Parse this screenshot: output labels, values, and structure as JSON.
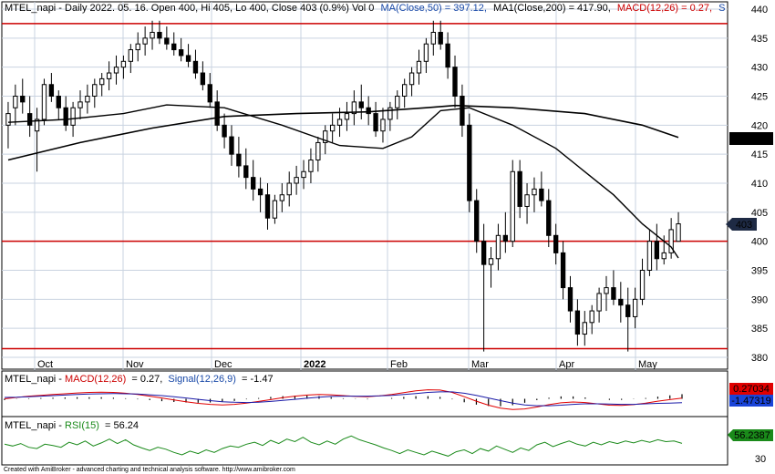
{
  "chart_data": [
    {
      "type": "candlestick",
      "symbol": "MTEL_napi",
      "header": {
        "prefix": "MTEL_napi - Daily 2022. 05. 16. Open 400, Hi 405, Lo 400, Close 403 (0.9%) Vol 0",
        "ma50": "MA(Close,50) = 397.12,",
        "ma200": "MA1(Close,200) = 417.90,",
        "macd": "MACD(12,26) = 0.27,",
        "tail": "S"
      },
      "ylim": [
        380,
        440
      ],
      "yticks": [
        440,
        435,
        430,
        425,
        420,
        415,
        410,
        405,
        400,
        395,
        390,
        385,
        380
      ],
      "xticks": [
        "Oct",
        "Nov",
        "Dec",
        "2022",
        "Feb",
        "Mar",
        "Apr",
        "May"
      ],
      "horizontal_lines": [
        437.5,
        400,
        381.5
      ],
      "last_value_labels": {
        "ma200": "417.905",
        "close": "403"
      },
      "candles": [
        [
          420,
          424,
          416,
          422
        ],
        [
          423,
          427,
          420,
          425
        ],
        [
          425,
          428,
          422,
          424
        ],
        [
          422,
          425,
          418,
          420
        ],
        [
          419,
          423,
          412,
          421
        ],
        [
          421,
          428,
          420,
          427
        ],
        [
          427,
          429,
          424,
          425
        ],
        [
          425,
          426,
          421,
          423
        ],
        [
          423,
          425,
          419,
          420
        ],
        [
          420,
          424,
          418,
          423
        ],
        [
          423,
          426,
          421,
          424
        ],
        [
          424,
          427,
          422,
          425
        ],
        [
          425,
          428,
          423,
          427
        ],
        [
          427,
          429,
          425,
          428
        ],
        [
          428,
          431,
          426,
          429
        ],
        [
          429,
          432,
          427,
          430
        ],
        [
          430,
          432,
          428,
          431
        ],
        [
          431,
          434,
          429,
          433
        ],
        [
          433,
          436,
          431,
          434
        ],
        [
          434,
          437,
          432,
          435
        ],
        [
          435,
          438,
          433,
          436
        ],
        [
          436,
          438,
          434,
          435
        ],
        [
          435,
          437,
          433,
          434
        ],
        [
          434,
          436,
          432,
          433
        ],
        [
          433,
          435,
          431,
          432
        ],
        [
          432,
          434,
          430,
          431
        ],
        [
          431,
          433,
          428,
          429
        ],
        [
          429,
          431,
          426,
          427
        ],
        [
          427,
          429,
          423,
          424
        ],
        [
          424,
          426,
          419,
          420
        ],
        [
          420,
          422,
          416,
          418
        ],
        [
          418,
          420,
          413,
          415
        ],
        [
          415,
          418,
          411,
          413
        ],
        [
          413,
          416,
          409,
          411
        ],
        [
          411,
          414,
          407,
          409
        ],
        [
          409,
          411,
          405,
          408
        ],
        [
          408,
          410,
          402,
          404
        ],
        [
          404,
          408,
          403,
          407
        ],
        [
          407,
          410,
          405,
          408
        ],
        [
          408,
          412,
          406,
          410
        ],
        [
          410,
          413,
          408,
          411
        ],
        [
          411,
          414,
          409,
          412
        ],
        [
          412,
          416,
          410,
          414
        ],
        [
          414,
          418,
          412,
          417
        ],
        [
          417,
          420,
          415,
          419
        ],
        [
          419,
          422,
          417,
          420
        ],
        [
          420,
          423,
          418,
          421
        ],
        [
          421,
          424,
          419,
          422
        ],
        [
          422,
          426,
          420,
          424
        ],
        [
          424,
          427,
          421,
          423
        ],
        [
          423,
          425,
          420,
          422
        ],
        [
          422,
          424,
          418,
          419
        ],
        [
          419,
          423,
          417,
          421
        ],
        [
          421,
          424,
          419,
          423
        ],
        [
          423,
          426,
          421,
          425
        ],
        [
          425,
          428,
          423,
          427
        ],
        [
          427,
          430,
          425,
          429
        ],
        [
          429,
          433,
          427,
          431
        ],
        [
          431,
          435,
          429,
          434
        ],
        [
          434,
          438,
          432,
          436
        ],
        [
          436,
          438,
          433,
          434
        ],
        [
          434,
          436,
          428,
          430
        ],
        [
          430,
          432,
          423,
          425
        ],
        [
          425,
          427,
          418,
          420
        ],
        [
          420,
          422,
          405,
          407
        ],
        [
          407,
          409,
          398,
          400
        ],
        [
          400,
          403,
          381,
          396
        ],
        [
          396,
          399,
          392,
          397
        ],
        [
          397,
          403,
          395,
          401
        ],
        [
          401,
          405,
          398,
          400
        ],
        [
          400,
          414,
          399,
          412
        ],
        [
          412,
          414,
          404,
          406
        ],
        [
          406,
          410,
          403,
          408
        ],
        [
          408,
          411,
          405,
          409
        ],
        [
          409,
          412,
          406,
          407
        ],
        [
          407,
          409,
          399,
          401
        ],
        [
          401,
          403,
          396,
          398
        ],
        [
          398,
          400,
          390,
          392
        ],
        [
          392,
          394,
          386,
          388
        ],
        [
          388,
          390,
          382,
          384
        ],
        [
          384,
          388,
          382,
          386
        ],
        [
          386,
          389,
          384,
          388
        ],
        [
          388,
          392,
          386,
          391
        ],
        [
          391,
          394,
          388,
          392
        ],
        [
          392,
          395,
          389,
          390
        ],
        [
          390,
          393,
          386,
          389
        ],
        [
          389,
          392,
          381,
          387
        ],
        [
          387,
          392,
          385,
          390
        ],
        [
          390,
          397,
          389,
          395
        ],
        [
          395,
          402,
          394,
          400
        ],
        [
          400,
          403,
          395,
          397
        ],
        [
          397,
          401,
          396,
          398
        ],
        [
          398,
          404,
          397,
          402
        ],
        [
          400,
          405,
          400,
          403
        ]
      ],
      "ma50_line": [
        [
          0,
          420.5
        ],
        [
          8,
          421
        ],
        [
          16,
          422
        ],
        [
          22,
          423.5
        ],
        [
          30,
          423
        ],
        [
          38,
          420
        ],
        [
          46,
          416.5
        ],
        [
          52,
          416
        ],
        [
          56,
          418
        ],
        [
          60,
          422.5
        ],
        [
          64,
          423
        ],
        [
          70,
          420
        ],
        [
          76,
          416
        ],
        [
          80,
          412
        ],
        [
          84,
          408
        ],
        [
          88,
          403
        ],
        [
          92,
          399
        ],
        [
          93,
          397.12
        ]
      ],
      "ma200_line": [
        [
          0,
          414
        ],
        [
          10,
          417
        ],
        [
          20,
          419.5
        ],
        [
          30,
          421.5
        ],
        [
          40,
          422
        ],
        [
          50,
          422.3
        ],
        [
          58,
          423
        ],
        [
          62,
          423.4
        ],
        [
          70,
          423
        ],
        [
          80,
          422
        ],
        [
          88,
          420
        ],
        [
          93,
          417.9
        ]
      ]
    },
    {
      "type": "line",
      "title": "MTEL_napi - MACD(12,26) = 0.27, Signal(12,26,9) = -1.47",
      "label_prefix": "MTEL_napi - ",
      "label_macd": "MACD(12,26)",
      "label_macd_val": "= 0.27,",
      "label_signal": "Signal(12,26,9)",
      "label_signal_val": "= -1.47",
      "last_value_labels": {
        "macd": "0.27034",
        "signal": "-1.47319"
      },
      "series": [
        {
          "name": "MACD(12,26)",
          "color": "#e00000",
          "values": [
            0,
            0.5,
            1,
            1.3,
            1.6,
            1.9,
            2.2,
            2.4,
            2.5,
            2.4,
            2.1,
            1.6,
            1,
            0.3,
            -0.4,
            -1.1,
            -1.7,
            -2.1,
            -2.3,
            -2.1,
            -1.6,
            -1,
            -0.3,
            0.4,
            1,
            1.4,
            1.6,
            1.5,
            1.2,
            0.9,
            0.8,
            1.1,
            1.6,
            2.3,
            3,
            3.4,
            3.3,
            2.4,
            0.8,
            -0.9,
            -2.4,
            -3.5,
            -4,
            -3.8,
            -3.1,
            -2.2,
            -1.5,
            -1.2,
            -1.4,
            -1.9,
            -2.4,
            -2.5,
            -2.2,
            -1.6,
            -0.9,
            -0.3,
            0.27
          ]
        },
        {
          "name": "Signal(12,26,9)",
          "color": "#1a1aa8",
          "values": [
            0.5,
            0.6,
            0.8,
            1,
            1.2,
            1.4,
            1.6,
            1.8,
            1.9,
            2,
            1.9,
            1.8,
            1.5,
            1.2,
            0.8,
            0.3,
            -0.2,
            -0.7,
            -1.1,
            -1.3,
            -1.4,
            -1.3,
            -1,
            -0.6,
            -0.2,
            0.2,
            0.6,
            0.9,
            1,
            1,
            1,
            1.1,
            1.3,
            1.6,
            2,
            2.4,
            2.6,
            2.6,
            2.1,
            1.3,
            0.3,
            -0.7,
            -1.6,
            -2.3,
            -2.6,
            -2.6,
            -2.4,
            -2.1,
            -1.9,
            -1.9,
            -2,
            -2.1,
            -2.1,
            -1.9,
            -1.7,
            -1.6,
            -1.47
          ]
        }
      ],
      "ylim": [
        -6,
        6
      ]
    },
    {
      "type": "line",
      "label_prefix": "MTEL_napi - ",
      "label_rsi": "RSI(15)",
      "label_rsi_val": "= 56.24",
      "yticks": [
        30
      ],
      "last_value_labels": {
        "rsi": "56.2387"
      },
      "series": [
        {
          "name": "RSI(15)",
          "color": "#1a8a1a",
          "values": [
            55,
            52,
            56,
            50,
            48,
            55,
            53,
            50,
            58,
            54,
            60,
            52,
            57,
            63,
            56,
            62,
            54,
            49,
            45,
            50,
            47,
            42,
            38,
            44,
            40,
            46,
            42,
            48,
            52,
            50,
            55,
            58,
            53,
            61,
            56,
            63,
            59,
            66,
            58,
            54,
            60,
            55,
            63,
            68,
            62,
            58,
            54,
            49,
            45,
            40,
            46,
            42,
            38,
            44,
            40,
            36,
            43,
            46,
            40,
            48,
            44,
            52,
            47,
            42,
            49,
            45,
            54,
            58,
            51,
            56,
            60,
            55,
            52,
            58,
            54,
            59,
            56,
            60,
            57,
            61,
            58,
            62,
            59,
            60,
            56.24
          ]
        }
      ],
      "ylim": [
        25,
        80
      ]
    }
  ],
  "footer": "Created with AmiBroker - advanced charting and technical analysis software. http://www.amibroker.com",
  "colors": {
    "grid": "#c9d3e0",
    "hline": "#cc0000",
    "candle": "#000000",
    "ma": "#000000",
    "macd": "#e00000",
    "signal": "#1a1aa8",
    "rsi": "#1a8a1a",
    "label_ma200_bg": "#000000",
    "label_close_bg": "#1e2a44",
    "label_macd_bg": "#e00000",
    "label_signal_bg": "#1a44d8",
    "label_rsi_bg": "#1a8a1a"
  }
}
